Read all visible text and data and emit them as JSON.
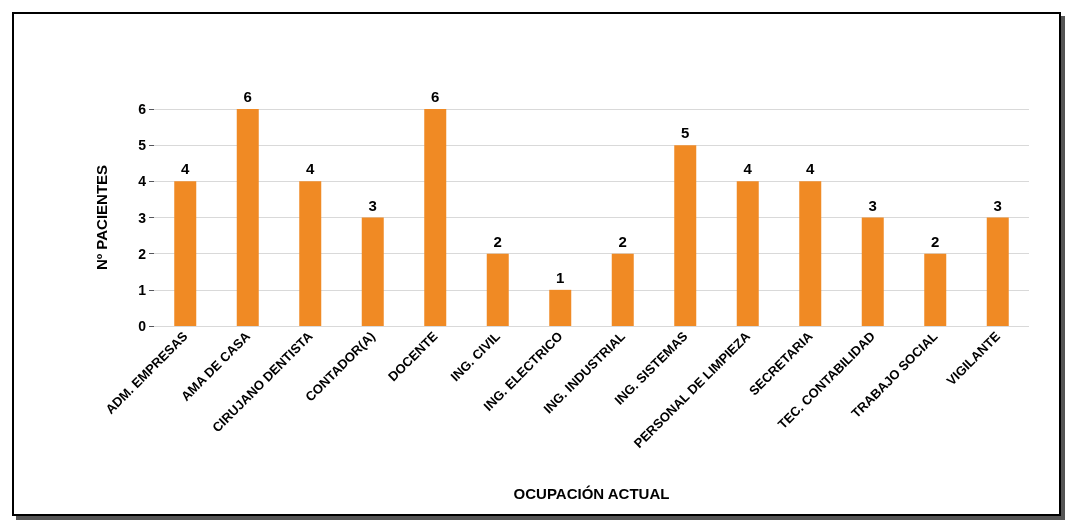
{
  "chart_data": {
    "type": "bar",
    "xlabel": "OCUPACIÓN ACTUAL",
    "ylabel": "Nº PACIENTES",
    "categories": [
      "ADM. EMPRESAS",
      "AMA DE CASA",
      "CIRUJANO DENTISTA",
      "CONTADOR(A)",
      "DOCENTE",
      "ING. CIVIL",
      "ING. ELECTRICO",
      "ING. INDUSTRIAL",
      "ING. SISTEMAS",
      "PERSONAL DE LIMPIEZA",
      "SECRETARIA",
      "TEC. CONTABILIDAD",
      "TRABAJO SOCIAL",
      "VIGILANTE"
    ],
    "values": [
      4,
      6,
      4,
      3,
      6,
      2,
      1,
      2,
      5,
      4,
      4,
      3,
      2,
      3
    ],
    "color": "#f08a24",
    "ylim": [
      0,
      6
    ],
    "yticks": [
      0,
      1,
      2,
      3,
      4,
      5,
      6
    ],
    "grid": "y",
    "data_labels": true
  }
}
